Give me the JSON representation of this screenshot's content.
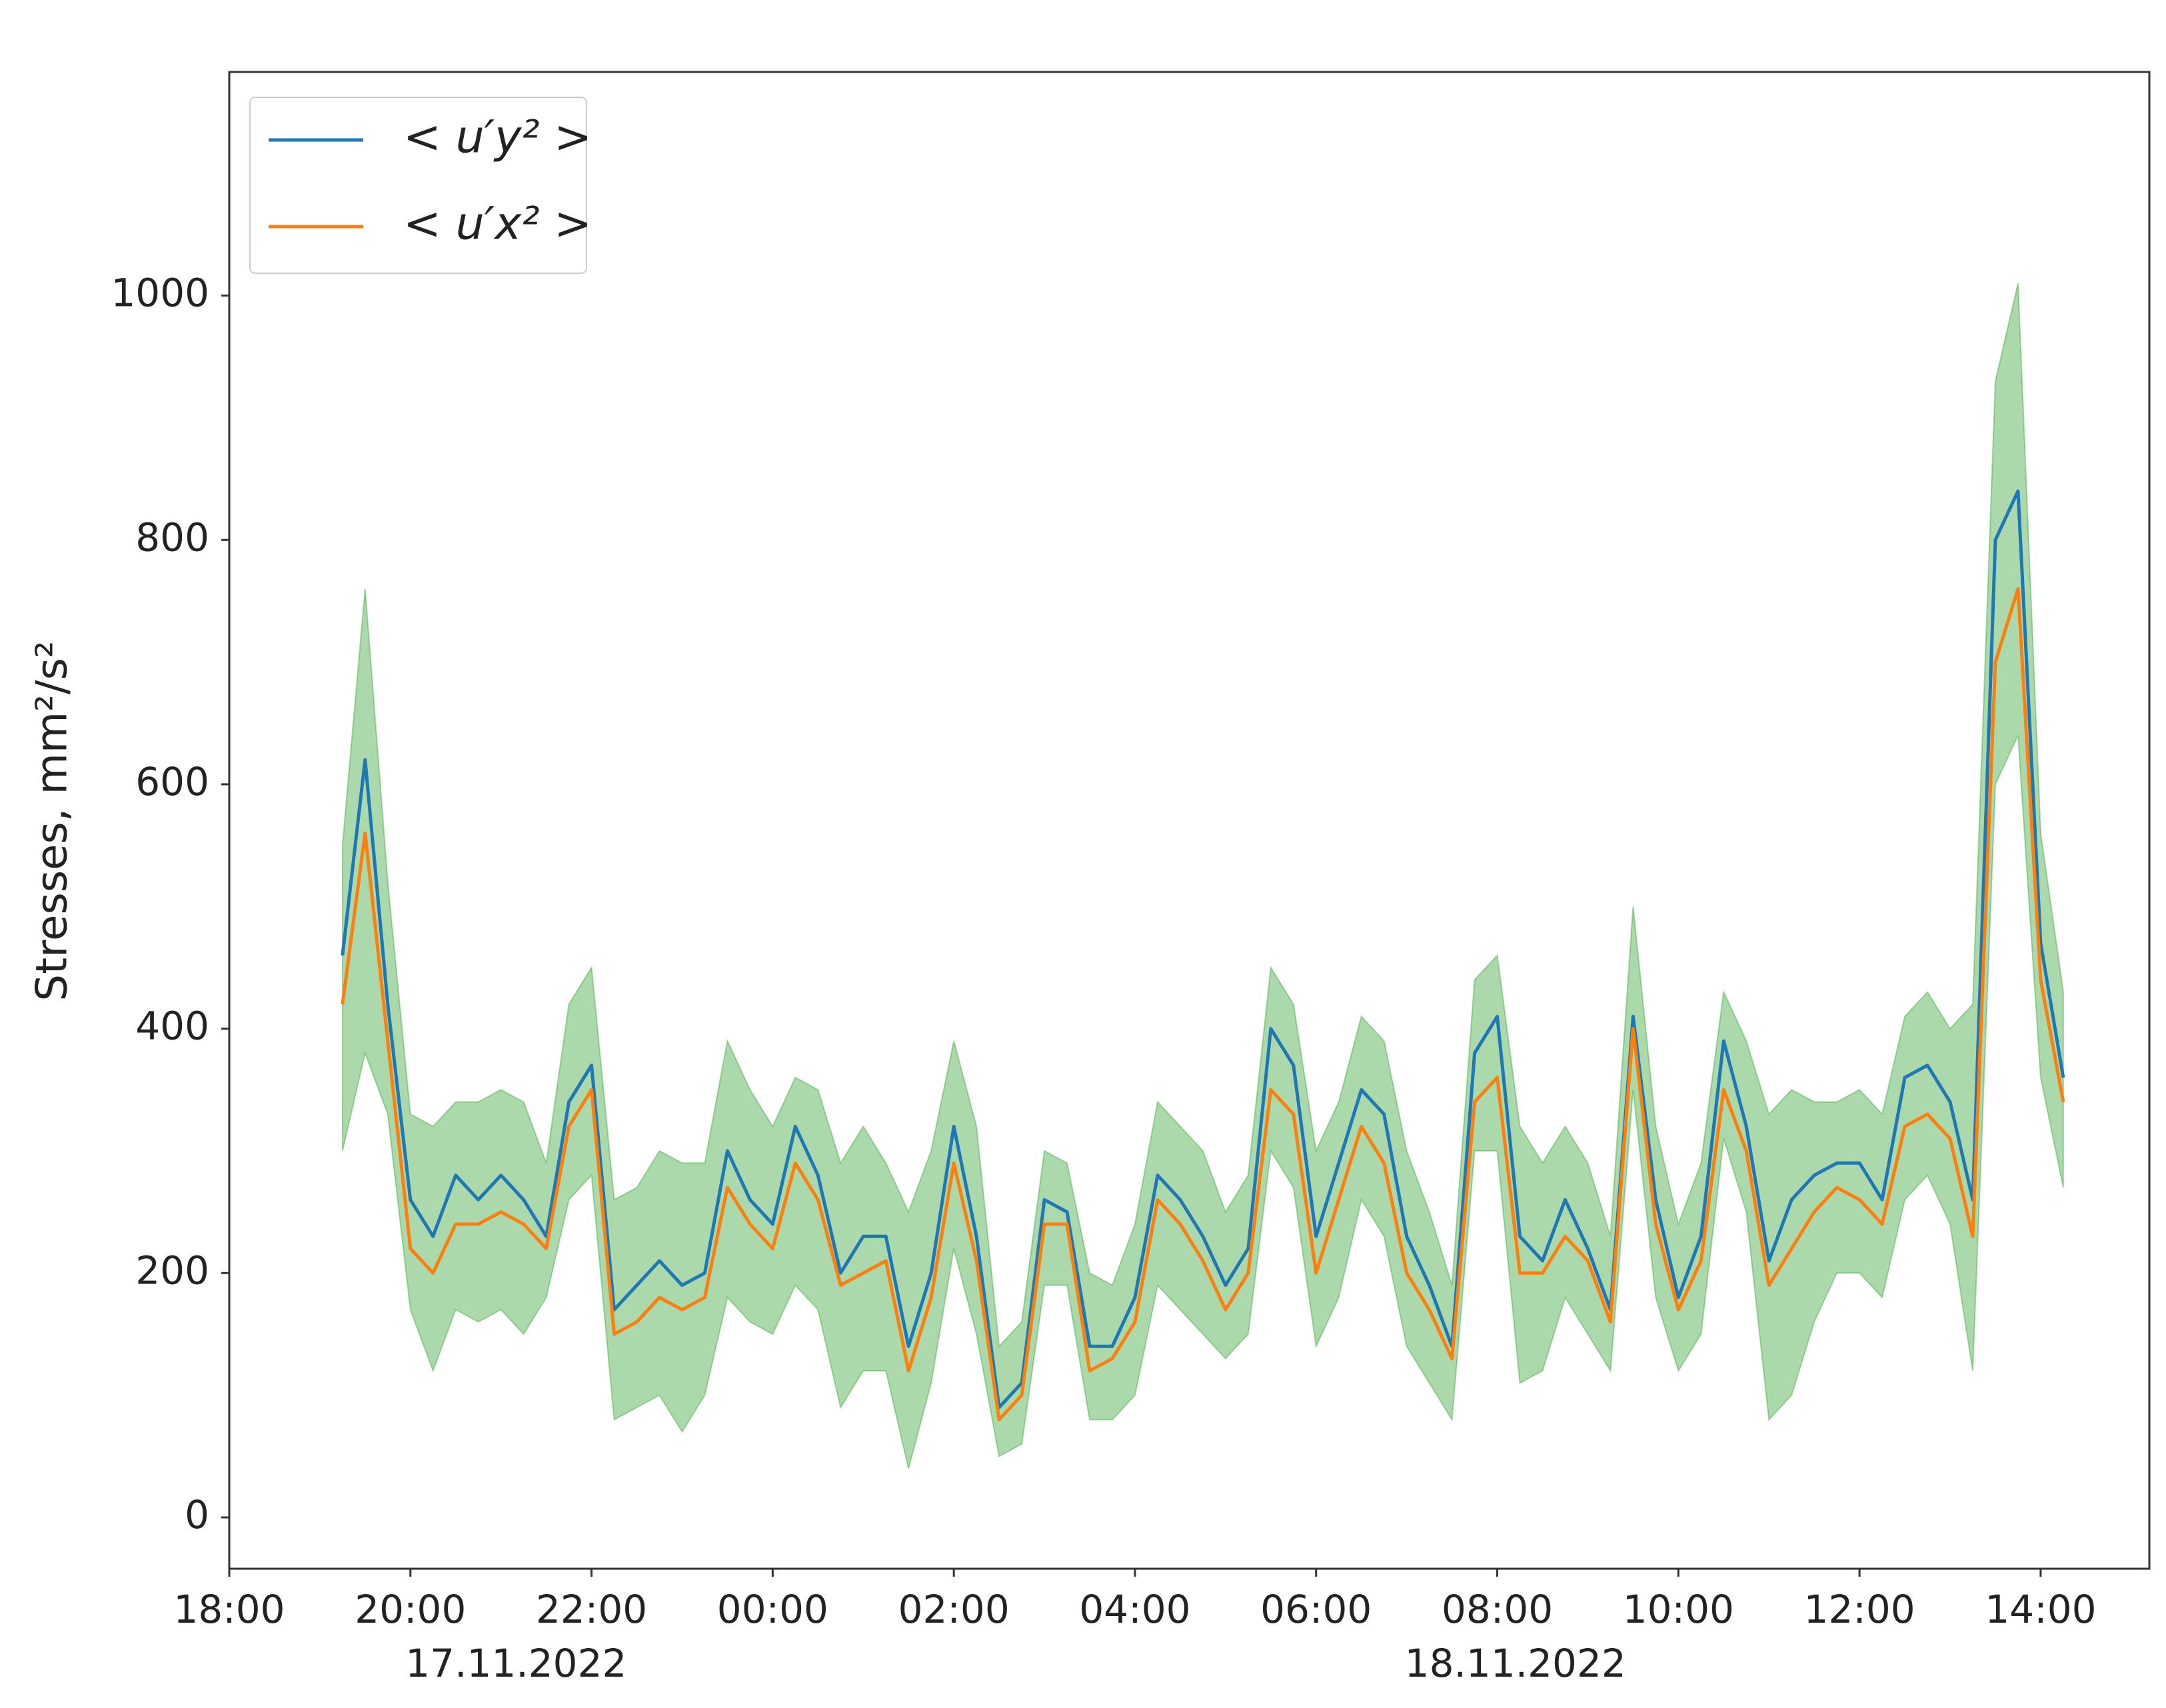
{
  "chart_data": {
    "type": "line",
    "y_label": "Stresses, mm²/s²",
    "x": [
      "2022-11-17T19:15",
      "2022-11-17T19:30",
      "2022-11-17T19:45",
      "2022-11-17T20:00",
      "2022-11-17T20:15",
      "2022-11-17T20:30",
      "2022-11-17T20:45",
      "2022-11-17T21:00",
      "2022-11-17T21:15",
      "2022-11-17T21:30",
      "2022-11-17T21:45",
      "2022-11-17T22:00",
      "2022-11-17T22:15",
      "2022-11-17T22:30",
      "2022-11-17T22:45",
      "2022-11-17T23:00",
      "2022-11-17T23:15",
      "2022-11-17T23:30",
      "2022-11-17T23:45",
      "2022-11-18T00:00",
      "2022-11-18T00:15",
      "2022-11-18T00:30",
      "2022-11-18T00:45",
      "2022-11-18T01:00",
      "2022-11-18T01:15",
      "2022-11-18T01:30",
      "2022-11-18T01:45",
      "2022-11-18T02:00",
      "2022-11-18T02:15",
      "2022-11-18T02:30",
      "2022-11-18T02:45",
      "2022-11-18T03:00",
      "2022-11-18T03:15",
      "2022-11-18T03:30",
      "2022-11-18T03:45",
      "2022-11-18T04:00",
      "2022-11-18T04:15",
      "2022-11-18T04:30",
      "2022-11-18T04:45",
      "2022-11-18T05:00",
      "2022-11-18T05:15",
      "2022-11-18T05:30",
      "2022-11-18T05:45",
      "2022-11-18T06:00",
      "2022-11-18T06:15",
      "2022-11-18T06:30",
      "2022-11-18T06:45",
      "2022-11-18T07:00",
      "2022-11-18T07:15",
      "2022-11-18T07:30",
      "2022-11-18T07:45",
      "2022-11-18T08:00",
      "2022-11-18T08:15",
      "2022-11-18T08:30",
      "2022-11-18T08:45",
      "2022-11-18T09:00",
      "2022-11-18T09:15",
      "2022-11-18T09:30",
      "2022-11-18T09:45",
      "2022-11-18T10:00",
      "2022-11-18T10:15",
      "2022-11-18T10:30",
      "2022-11-18T10:45",
      "2022-11-18T11:00",
      "2022-11-18T11:15",
      "2022-11-18T11:30",
      "2022-11-18T11:45",
      "2022-11-18T12:00",
      "2022-11-18T12:15",
      "2022-11-18T12:30",
      "2022-11-18T12:45",
      "2022-11-18T13:00",
      "2022-11-18T13:15",
      "2022-11-18T13:30",
      "2022-11-18T13:45",
      "2022-11-18T14:00",
      "2022-11-18T14:15"
    ],
    "series": [
      {
        "name": "< u′y² >",
        "color": "#1f77b4",
        "values": [
          460,
          620,
          420,
          260,
          230,
          280,
          260,
          280,
          260,
          230,
          340,
          370,
          170,
          190,
          210,
          190,
          200,
          300,
          260,
          240,
          320,
          280,
          200,
          230,
          230,
          140,
          200,
          320,
          230,
          90,
          110,
          260,
          250,
          140,
          140,
          180,
          280,
          260,
          230,
          190,
          220,
          400,
          370,
          230,
          290,
          350,
          330,
          230,
          190,
          140,
          380,
          410,
          230,
          210,
          260,
          220,
          170,
          410,
          260,
          180,
          230,
          390,
          320,
          210,
          260,
          280,
          290,
          290,
          260,
          360,
          370,
          340,
          260,
          800,
          840,
          470,
          360
        ]
      },
      {
        "name": "< u′x² >",
        "color": "#ff7f0e",
        "values": [
          420,
          560,
          390,
          220,
          200,
          240,
          240,
          250,
          240,
          220,
          320,
          350,
          150,
          160,
          180,
          170,
          180,
          270,
          240,
          220,
          290,
          260,
          190,
          200,
          210,
          120,
          180,
          290,
          210,
          80,
          100,
          240,
          240,
          120,
          130,
          160,
          260,
          240,
          210,
          170,
          200,
          350,
          330,
          200,
          260,
          320,
          290,
          200,
          170,
          130,
          340,
          360,
          200,
          200,
          230,
          210,
          160,
          400,
          240,
          170,
          210,
          350,
          300,
          190,
          220,
          250,
          270,
          260,
          240,
          320,
          330,
          310,
          230,
          700,
          760,
          440,
          340
        ]
      }
    ],
    "band": {
      "color": "#2ca02c",
      "alpha": 0.4,
      "upper": [
        550,
        760,
        520,
        330,
        320,
        340,
        340,
        350,
        340,
        290,
        420,
        450,
        260,
        270,
        300,
        290,
        290,
        390,
        350,
        320,
        360,
        350,
        290,
        320,
        290,
        250,
        300,
        390,
        320,
        140,
        160,
        300,
        290,
        200,
        190,
        240,
        340,
        320,
        300,
        250,
        280,
        450,
        420,
        300,
        340,
        410,
        390,
        300,
        250,
        190,
        440,
        460,
        320,
        290,
        320,
        290,
        230,
        500,
        320,
        240,
        290,
        430,
        390,
        330,
        350,
        340,
        340,
        350,
        330,
        410,
        430,
        400,
        420,
        930,
        1010,
        560,
        430
      ],
      "lower": [
        300,
        380,
        330,
        170,
        120,
        170,
        160,
        170,
        150,
        180,
        260,
        280,
        80,
        90,
        100,
        70,
        100,
        180,
        160,
        150,
        190,
        170,
        90,
        120,
        120,
        40,
        110,
        220,
        150,
        50,
        60,
        190,
        190,
        80,
        80,
        100,
        190,
        170,
        150,
        130,
        150,
        300,
        270,
        140,
        180,
        260,
        230,
        140,
        110,
        80,
        300,
        300,
        110,
        120,
        180,
        150,
        120,
        350,
        180,
        120,
        150,
        310,
        250,
        80,
        100,
        160,
        200,
        200,
        180,
        260,
        280,
        240,
        120,
        600,
        640,
        360,
        270
      ]
    },
    "xlim": [
      "2022-11-17T18:00",
      "2022-11-18T15:12"
    ],
    "xticks": [
      {
        "value": "2022-11-17T18:00",
        "label": "18:00"
      },
      {
        "value": "2022-11-17T20:00",
        "label": "20:00"
      },
      {
        "value": "2022-11-17T22:00",
        "label": "22:00"
      },
      {
        "value": "2022-11-18T00:00",
        "label": "00:00"
      },
      {
        "value": "2022-11-18T02:00",
        "label": "02:00"
      },
      {
        "value": "2022-11-18T04:00",
        "label": "04:00"
      },
      {
        "value": "2022-11-18T06:00",
        "label": "06:00"
      },
      {
        "value": "2022-11-18T08:00",
        "label": "08:00"
      },
      {
        "value": "2022-11-18T10:00",
        "label": "10:00"
      },
      {
        "value": "2022-11-18T12:00",
        "label": "12:00"
      },
      {
        "value": "2022-11-18T14:00",
        "label": "14:00"
      }
    ],
    "date_labels": [
      {
        "value": "2022-11-17T21:10",
        "label": "17.11.2022"
      },
      {
        "value": "2022-11-18T08:12",
        "label": "18.11.2022"
      }
    ],
    "ylim": [
      -42,
      1183
    ],
    "yticks": [
      0,
      200,
      400,
      600,
      800,
      1000
    ],
    "legend": "upper-left",
    "grid": false
  }
}
